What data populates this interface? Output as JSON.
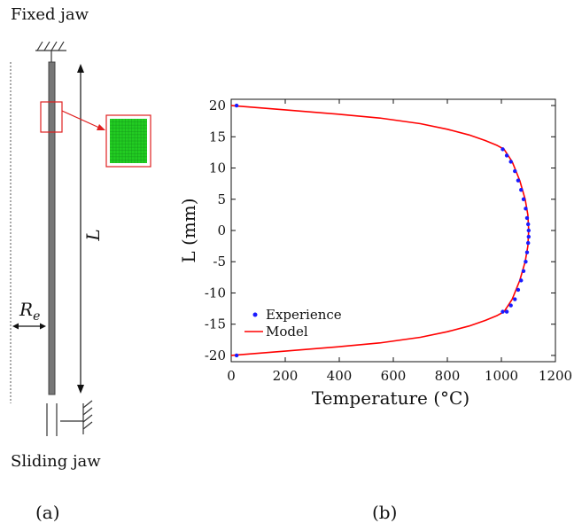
{
  "diagram": {
    "fixed_jaw_label": "Fixed jaw",
    "sliding_jaw_label": "Sliding jaw",
    "length_symbol": "L",
    "radius_symbol": "R",
    "radius_subscript": "e",
    "caption": "(a)",
    "colors": {
      "rod": "#777777",
      "highlight": "#e02020",
      "mesh": "#22cc22"
    }
  },
  "chart_caption": "(b)",
  "chart_data": {
    "type": "line",
    "title": "",
    "xlabel": "Temperature (°C)",
    "ylabel": "L (mm)",
    "xlim": [
      0,
      1200
    ],
    "ylim": [
      -21,
      21
    ],
    "xticks": [
      0,
      200,
      400,
      600,
      800,
      1000,
      1200
    ],
    "yticks": [
      20,
      15,
      10,
      5,
      0,
      -5,
      -10,
      -15,
      -20
    ],
    "grid": false,
    "legend_position": "bottom-left",
    "series": [
      {
        "name": "Experience",
        "kind": "scatter",
        "color": "#1a1aff",
        "x": [
          20,
          20,
          1005,
          1020,
          1035,
          1050,
          1062,
          1073,
          1082,
          1090,
          1095,
          1099,
          1101,
          1101,
          1099,
          1095,
          1090,
          1082,
          1073,
          1062,
          1050,
          1035,
          1020,
          1005
        ],
        "y": [
          20,
          -20,
          13,
          12,
          11,
          9.5,
          8,
          6.5,
          5,
          3.5,
          2,
          1,
          0,
          -1,
          -2,
          -3.5,
          -5,
          -6.5,
          -8,
          -9.5,
          -11,
          -12,
          -13,
          -13
        ]
      },
      {
        "name": "Model",
        "kind": "line",
        "color": "#ff0000",
        "x": [
          0,
          200,
          400,
          550,
          700,
          800,
          880,
          940,
          985,
          1010,
          1040,
          1068,
          1088,
          1098,
          1101,
          1098,
          1088,
          1068,
          1040,
          1010,
          985,
          940,
          880,
          800,
          700,
          550,
          400,
          200,
          0
        ],
        "y": [
          20,
          19.3,
          18.6,
          18.0,
          17.1,
          16.2,
          15.3,
          14.4,
          13.6,
          13.0,
          11,
          8,
          5,
          2.5,
          0,
          -2.5,
          -5,
          -8,
          -11,
          -13,
          -13.6,
          -14.4,
          -15.3,
          -16.2,
          -17.1,
          -18.0,
          -18.6,
          -19.3,
          -20
        ]
      }
    ]
  }
}
